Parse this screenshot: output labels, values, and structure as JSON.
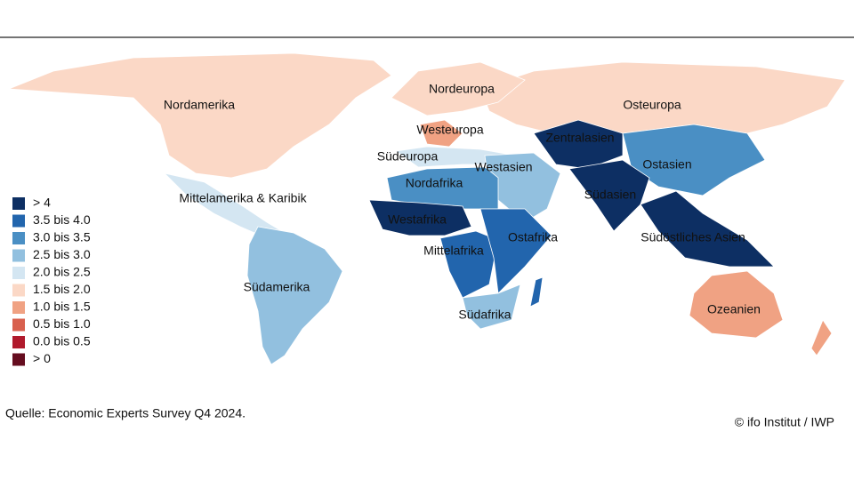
{
  "title": null,
  "regions": [
    {
      "label": "Nordamerika",
      "color": "#fbd8c6"
    },
    {
      "label": "Mittelamerika & Karibik",
      "color": "#d4e6f2"
    },
    {
      "label": "Südamerika",
      "color": "#92c0df"
    },
    {
      "label": "Nordeuropa",
      "color": "#fbd8c6"
    },
    {
      "label": "Westeuropa",
      "color": "#f0a283"
    },
    {
      "label": "Südeuropa",
      "color": "#d4e6f2"
    },
    {
      "label": "Osteuropa",
      "color": "#fbd8c6"
    },
    {
      "label": "Zentralasien",
      "color": "#0d2f63"
    },
    {
      "label": "Westasien",
      "color": "#92c0df"
    },
    {
      "label": "Ostasien",
      "color": "#4a8fc4"
    },
    {
      "label": "Nordafrika",
      "color": "#4a8fc4"
    },
    {
      "label": "Westafrika",
      "color": "#0d2f63"
    },
    {
      "label": "Südasien",
      "color": "#0d2f63"
    },
    {
      "label": "Südöstliches Asien",
      "color": "#0d2f63"
    },
    {
      "label": "Mittelafrika",
      "color": "#2265ad"
    },
    {
      "label": "Ostafrika",
      "color": "#2265ad"
    },
    {
      "label": "Südafrika",
      "color": "#92c0df"
    },
    {
      "label": "Ozeanien",
      "color": "#f0a283"
    }
  ],
  "legend": [
    {
      "label": "> 4",
      "color": "#0d2f63"
    },
    {
      "label": "3.5 bis 4.0",
      "color": "#2265ad"
    },
    {
      "label": "3.0 bis 3.5",
      "color": "#4a8fc4"
    },
    {
      "label": "2.5 bis 3.0",
      "color": "#92c0df"
    },
    {
      "label": "2.0 bis 2.5",
      "color": "#d4e6f2"
    },
    {
      "label": "1.5 bis 2.0",
      "color": "#fbd8c6"
    },
    {
      "label": "1.0 bis 1.5",
      "color": "#f0a283"
    },
    {
      "label": "0.5 bis 1.0",
      "color": "#d8604e"
    },
    {
      "label": "0.0 bis 0.5",
      "color": "#b01a2c"
    },
    {
      "label": "> 0",
      "color": "#650d1f"
    }
  ],
  "source": "Quelle: Economic Experts Survey Q4 2024.",
  "credit": "© ifo Institut / IWP"
}
